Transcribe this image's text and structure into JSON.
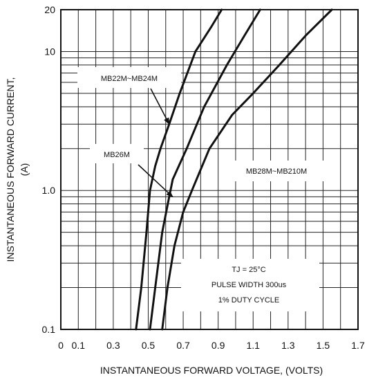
{
  "chart_data": {
    "type": "line",
    "xlabel": "INSTANTANEOUS FORWARD VOLTAGE, (VOLTS)",
    "ylabel_line1": "INSTANTANEOUS FORWARD CURRENT,",
    "ylabel_line2": "(A)",
    "x_axis": {
      "min": 0,
      "max": 1.7,
      "ticks": [
        0,
        0.1,
        0.3,
        0.5,
        0.7,
        0.9,
        1.1,
        1.3,
        1.5,
        1.7
      ],
      "tick_labels": [
        "0",
        "0.1",
        "0.3",
        "0.5",
        "0.7",
        "0.9",
        "1.1",
        "1.3",
        "1.5",
        "1.7"
      ]
    },
    "y_axis": {
      "scale": "log",
      "min": 0.1,
      "max": 20,
      "ticks": [
        0.1,
        1.0,
        10,
        20
      ],
      "tick_labels": [
        "0.1",
        "1.0",
        "10",
        "20"
      ]
    },
    "grid": true,
    "series": [
      {
        "name": "MB22M~MB24M",
        "points": [
          [
            0.43,
            0.1
          ],
          [
            0.46,
            0.2
          ],
          [
            0.49,
            0.5
          ],
          [
            0.51,
            1.0
          ],
          [
            0.54,
            1.5
          ],
          [
            0.57,
            2.0
          ],
          [
            0.62,
            3.0
          ],
          [
            0.68,
            5.0
          ],
          [
            0.77,
            10
          ],
          [
            0.86,
            15
          ],
          [
            0.92,
            20
          ]
        ]
      },
      {
        "name": "MB26M",
        "points": [
          [
            0.51,
            0.1
          ],
          [
            0.54,
            0.2
          ],
          [
            0.58,
            0.5
          ],
          [
            0.62,
            0.9
          ],
          [
            0.64,
            1.2
          ],
          [
            0.72,
            2.0
          ],
          [
            0.82,
            4.0
          ],
          [
            0.95,
            8.0
          ],
          [
            1.05,
            13
          ],
          [
            1.14,
            20
          ]
        ]
      },
      {
        "name": "MB28M~MB210M",
        "points": [
          [
            0.58,
            0.1
          ],
          [
            0.61,
            0.2
          ],
          [
            0.65,
            0.4
          ],
          [
            0.7,
            0.7
          ],
          [
            0.75,
            1.0
          ],
          [
            0.85,
            2.0
          ],
          [
            0.98,
            3.5
          ],
          [
            1.1,
            5.0
          ],
          [
            1.25,
            8.0
          ],
          [
            1.4,
            13
          ],
          [
            1.55,
            20
          ]
        ]
      }
    ],
    "annotations": [
      {
        "text": "MB22M~MB24M",
        "target": [
          0.62,
          3.0
        ]
      },
      {
        "text": "MB26M",
        "target": [
          0.64,
          0.9
        ]
      },
      {
        "text": "MB28M~MB210M",
        "target": null
      }
    ],
    "notes": [
      "TJ = 25°C",
      "PULSE WIDTH 300us",
      "1% DUTY CYCLE"
    ]
  }
}
